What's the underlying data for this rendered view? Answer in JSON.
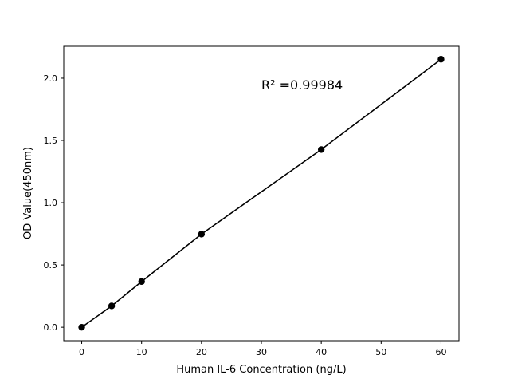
{
  "chart_data": {
    "type": "line",
    "title": "",
    "xlabel": "Human IL-6 Concentration (ng/L)",
    "ylabel": "OD Value(450nm)",
    "xlim": [
      -3,
      63
    ],
    "ylim": [
      -0.108,
      2.256
    ],
    "xticks": [
      0,
      10,
      20,
      30,
      40,
      50,
      60
    ],
    "xtick_labels": [
      "0",
      "10",
      "20",
      "30",
      "40",
      "50",
      "60"
    ],
    "yticks": [
      0,
      0.5,
      1.0,
      1.5,
      2.0
    ],
    "ytick_labels": [
      "0.0",
      "0.5",
      "1.0",
      "1.5",
      "2.0"
    ],
    "grid": false,
    "series": [
      {
        "x": [
          0,
          5,
          10,
          20,
          40,
          60
        ],
        "y": [
          0.0,
          0.171,
          0.367,
          0.748,
          1.427,
          2.152
        ],
        "color": "#000000",
        "marker": "circle"
      }
    ],
    "annotation": {
      "text": "R² =0.99984",
      "x": 30,
      "y": 1.95
    }
  }
}
